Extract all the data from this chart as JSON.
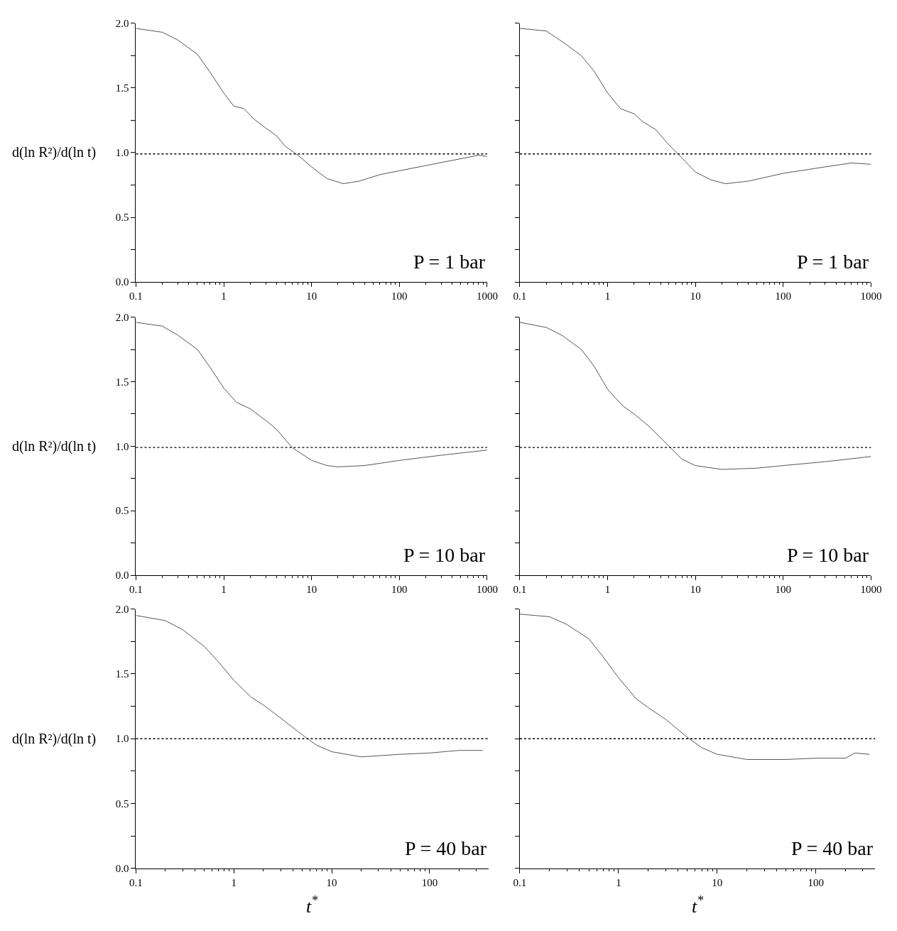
{
  "chart_data": [
    {
      "type": "line",
      "log": "x",
      "ylabel": "d(ln R²)/d(ln t)",
      "annotations": [
        "P = 1 bar"
      ],
      "x": [
        0.1,
        0.2,
        0.3,
        0.5,
        0.7,
        1.0,
        1.3,
        1.7,
        2.2,
        3,
        4,
        5,
        7,
        10,
        15,
        23,
        35,
        60,
        100,
        200,
        400,
        800,
        1000
      ],
      "series": [
        {
          "color": "#555555",
          "values": [
            1.96,
            1.93,
            1.87,
            1.76,
            1.62,
            1.46,
            1.36,
            1.34,
            1.26,
            1.19,
            1.13,
            1.05,
            0.98,
            0.89,
            0.8,
            0.76,
            0.78,
            0.83,
            0.86,
            0.9,
            0.94,
            0.98,
            0.97
          ]
        }
      ],
      "xlim": [
        0.1,
        1000
      ],
      "xticks": [
        0.1,
        1,
        10,
        100,
        1000
      ],
      "ylim": [
        0,
        2
      ],
      "yticks": [
        {
          "value": 0,
          "label": "0.0"
        },
        {
          "value": 0.25,
          "label": null
        },
        {
          "value": 0.5,
          "label": "0.5"
        },
        {
          "value": 0.75,
          "label": null
        },
        {
          "value": 1,
          "label": "1.0"
        },
        {
          "value": 1.25,
          "label": null
        },
        {
          "value": 1.5,
          "label": "1.5"
        },
        {
          "value": 1.75,
          "label": null
        },
        {
          "value": 2,
          "label": "2.0"
        }
      ],
      "ref_lines": [
        {
          "axis": "y",
          "value": 0.99,
          "color": "#000000",
          "line_style": "dotted"
        }
      ]
    },
    {
      "type": "line",
      "log": "x",
      "tick_labels": "x",
      "annotations": [
        "P = 1 bar"
      ],
      "x": [
        0.1,
        0.2,
        0.3,
        0.5,
        0.7,
        1,
        1.4,
        2,
        2.5,
        3.5,
        5,
        7,
        10,
        15,
        22,
        40,
        100,
        300,
        600,
        1000
      ],
      "series": [
        {
          "color": "#555555",
          "values": [
            1.96,
            1.94,
            1.86,
            1.75,
            1.63,
            1.46,
            1.34,
            1.3,
            1.24,
            1.18,
            1.06,
            0.96,
            0.85,
            0.79,
            0.76,
            0.78,
            0.84,
            0.89,
            0.92,
            0.91
          ]
        }
      ],
      "xlim": [
        0.1,
        1000
      ],
      "xticks": [
        0.1,
        1,
        10,
        100,
        1000
      ],
      "ylim": [
        0,
        2
      ],
      "yticks": [
        {
          "value": 0,
          "label": null
        },
        {
          "value": 0.25,
          "label": null
        },
        {
          "value": 0.5,
          "label": null
        },
        {
          "value": 0.75,
          "label": null
        },
        {
          "value": 1,
          "label": null
        },
        {
          "value": 1.25,
          "label": null
        },
        {
          "value": 1.5,
          "label": null
        },
        {
          "value": 1.75,
          "label": null
        },
        {
          "value": 2,
          "label": null
        }
      ],
      "ref_lines": [
        {
          "axis": "y",
          "value": 0.99,
          "color": "#000000",
          "line_style": "dotted"
        }
      ]
    },
    {
      "type": "line",
      "log": "x",
      "ylabel": "d(ln R²)/d(ln t)",
      "annotations": [
        "P = 10 bar"
      ],
      "x": [
        0.1,
        0.2,
        0.3,
        0.5,
        0.7,
        1,
        1.4,
        2,
        3,
        4,
        6,
        10,
        15,
        20,
        40,
        100,
        300,
        1000
      ],
      "series": [
        {
          "color": "#555555",
          "values": [
            1.96,
            1.93,
            1.86,
            1.75,
            1.61,
            1.45,
            1.34,
            1.29,
            1.2,
            1.13,
            0.99,
            0.89,
            0.85,
            0.84,
            0.85,
            0.89,
            0.93,
            0.97
          ]
        }
      ],
      "xlim": [
        0.1,
        1000
      ],
      "xticks": [
        0.1,
        1,
        10,
        100,
        1000
      ],
      "ylim": [
        0,
        2
      ],
      "yticks": [
        {
          "value": 0,
          "label": "0.0"
        },
        {
          "value": 0.25,
          "label": null
        },
        {
          "value": 0.5,
          "label": "0.5"
        },
        {
          "value": 0.75,
          "label": null
        },
        {
          "value": 1,
          "label": "1.0"
        },
        {
          "value": 1.25,
          "label": null
        },
        {
          "value": 1.5,
          "label": "1.5"
        },
        {
          "value": 1.75,
          "label": null
        },
        {
          "value": 2,
          "label": "2.0"
        }
      ],
      "ref_lines": [
        {
          "axis": "y",
          "value": 0.99,
          "color": "#000000",
          "line_style": "dotted"
        }
      ]
    },
    {
      "type": "line",
      "log": "x",
      "tick_labels": "x",
      "annotations": [
        "P = 10 bar"
      ],
      "x": [
        0.1,
        0.2,
        0.3,
        0.5,
        0.7,
        1,
        1.5,
        2,
        3,
        5,
        7,
        10,
        20,
        50,
        100,
        300,
        1000
      ],
      "series": [
        {
          "color": "#555555",
          "values": [
            1.96,
            1.92,
            1.86,
            1.75,
            1.62,
            1.44,
            1.31,
            1.25,
            1.15,
            1.0,
            0.9,
            0.85,
            0.82,
            0.83,
            0.85,
            0.88,
            0.92
          ]
        }
      ],
      "xlim": [
        0.1,
        1000
      ],
      "xticks": [
        0.1,
        1,
        10,
        100,
        1000
      ],
      "ylim": [
        0,
        2
      ],
      "yticks": [
        {
          "value": 0,
          "label": null
        },
        {
          "value": 0.25,
          "label": null
        },
        {
          "value": 0.5,
          "label": null
        },
        {
          "value": 0.75,
          "label": null
        },
        {
          "value": 1,
          "label": null
        },
        {
          "value": 1.25,
          "label": null
        },
        {
          "value": 1.5,
          "label": null
        },
        {
          "value": 1.75,
          "label": null
        },
        {
          "value": 2,
          "label": null
        }
      ],
      "ref_lines": [
        {
          "axis": "y",
          "value": 0.99,
          "color": "#000000",
          "line_style": "dotted"
        }
      ]
    },
    {
      "type": "line",
      "log": "x",
      "ylabel": "d(ln R²)/d(ln t)",
      "xlabel": "t$^{*}$",
      "annotations": [
        "P = 40 bar"
      ],
      "x": [
        0.1,
        0.2,
        0.3,
        0.5,
        0.7,
        1,
        1.5,
        2,
        3,
        5,
        7,
        10,
        20,
        50,
        100,
        200,
        350
      ],
      "series": [
        {
          "color": "#555555",
          "values": [
            1.95,
            1.91,
            1.84,
            1.71,
            1.59,
            1.45,
            1.32,
            1.26,
            1.16,
            1.03,
            0.95,
            0.9,
            0.86,
            0.88,
            0.89,
            0.91,
            0.91
          ]
        }
      ],
      "xlim": [
        0.1,
        400
      ],
      "xticks": [
        0.1,
        1,
        10,
        100
      ],
      "ylim": [
        0,
        2
      ],
      "yticks": [
        {
          "value": 0,
          "label": "0.0"
        },
        {
          "value": 0.25,
          "label": null
        },
        {
          "value": 0.5,
          "label": "0.5"
        },
        {
          "value": 0.75,
          "label": null
        },
        {
          "value": 1,
          "label": "1.0"
        },
        {
          "value": 1.25,
          "label": null
        },
        {
          "value": 1.5,
          "label": "1.5"
        },
        {
          "value": 1.75,
          "label": null
        },
        {
          "value": 2,
          "label": "2.0"
        }
      ],
      "ref_lines": [
        {
          "axis": "y",
          "value": 1.0,
          "color": "#000000",
          "line_style": "dotted"
        }
      ]
    },
    {
      "type": "line",
      "log": "x",
      "tick_labels": "x",
      "xlabel": "t$^{*}$",
      "annotations": [
        "P = 40 bar"
      ],
      "x": [
        0.1,
        0.2,
        0.3,
        0.5,
        0.7,
        1,
        1.5,
        2,
        3,
        5,
        7,
        10,
        20,
        50,
        100,
        200,
        250,
        350
      ],
      "series": [
        {
          "color": "#555555",
          "values": [
            1.96,
            1.94,
            1.88,
            1.77,
            1.63,
            1.47,
            1.31,
            1.24,
            1.15,
            1.01,
            0.93,
            0.88,
            0.84,
            0.84,
            0.85,
            0.85,
            0.89,
            0.88
          ]
        }
      ],
      "xlim": [
        0.1,
        400
      ],
      "xticks": [
        0.1,
        1,
        10,
        100
      ],
      "ylim": [
        0,
        2
      ],
      "yticks": [
        {
          "value": 0,
          "label": null
        },
        {
          "value": 0.25,
          "label": null
        },
        {
          "value": 0.5,
          "label": null
        },
        {
          "value": 0.75,
          "label": null
        },
        {
          "value": 1,
          "label": null
        },
        {
          "value": 1.25,
          "label": null
        },
        {
          "value": 1.5,
          "label": null
        },
        {
          "value": 1.75,
          "label": null
        },
        {
          "value": 2,
          "label": null
        }
      ],
      "ref_lines": [
        {
          "axis": "y",
          "value": 1.0,
          "color": "#000000",
          "line_style": "dotted"
        }
      ]
    }
  ]
}
